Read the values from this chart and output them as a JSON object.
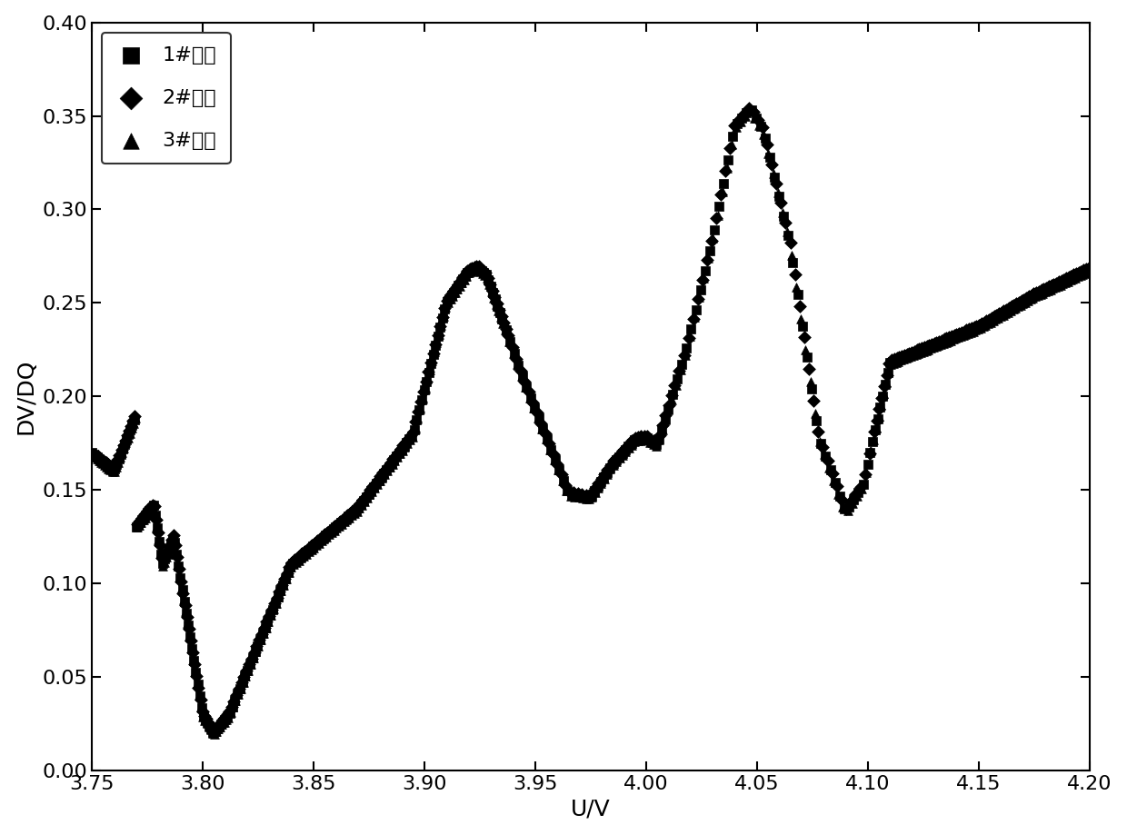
{
  "xlabel": "U/V",
  "ylabel": "DV/DQ",
  "xlim": [
    3.75,
    4.2
  ],
  "ylim": [
    0.0,
    0.4
  ],
  "xticks": [
    3.75,
    3.8,
    3.85,
    3.9,
    3.95,
    4.0,
    4.05,
    4.1,
    4.15,
    4.2
  ],
  "yticks": [
    0.0,
    0.05,
    0.1,
    0.15,
    0.2,
    0.25,
    0.3,
    0.35,
    0.4
  ],
  "legend_labels": [
    "1#电芯",
    "2#电芯",
    "3#电芯"
  ],
  "markers": [
    "s",
    "D",
    "^"
  ],
  "color": "#000000",
  "markersize": 7,
  "background_color": "#ffffff",
  "label_fontsize": 18,
  "tick_fontsize": 16,
  "legend_fontsize": 16
}
